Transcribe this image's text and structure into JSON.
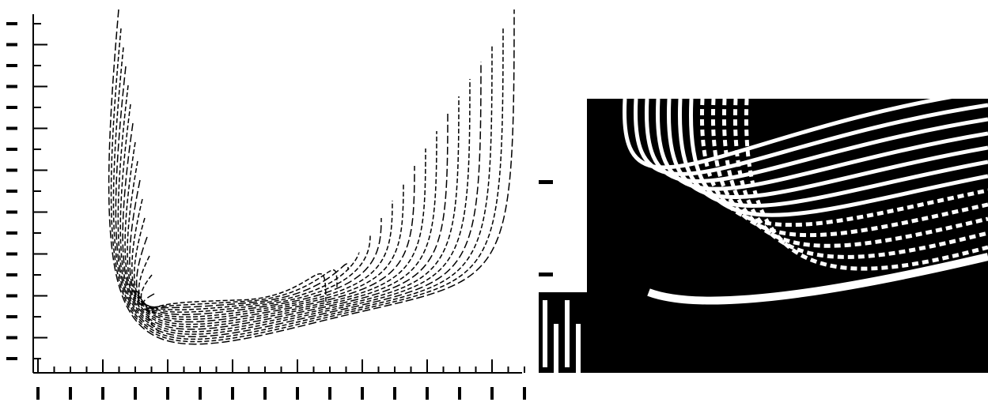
{
  "chart_data": [
    {
      "type": "contour"
    },
    {
      "type": "bitmap"
    }
  ]
}
